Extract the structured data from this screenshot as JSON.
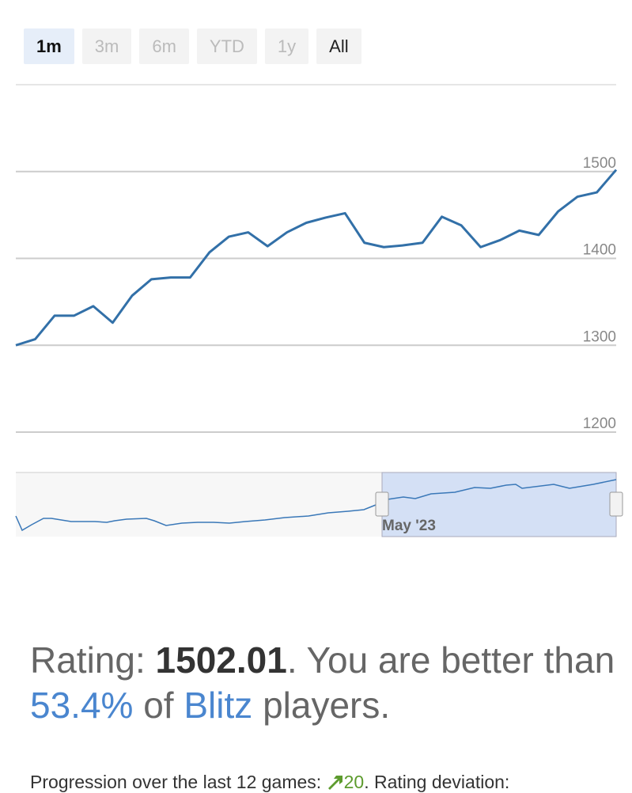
{
  "range_buttons": [
    "1m",
    "3m",
    "6m",
    "YTD",
    "1y",
    "All"
  ],
  "chart_data": {
    "type": "line",
    "color": "#3270a8",
    "grid": true,
    "values": [
      1300,
      1307,
      1334,
      1334,
      1345,
      1326,
      1357,
      1376,
      1378,
      1378,
      1407,
      1425,
      1430,
      1414,
      1430,
      1441,
      1447,
      1452,
      1418,
      1413,
      1415,
      1418,
      1448,
      1438,
      1413,
      1421,
      1432,
      1427,
      1454,
      1471,
      1476,
      1502
    ],
    "ylim": [
      1200,
      1600
    ],
    "yticks": [
      1200,
      1300,
      1400,
      1500
    ]
  },
  "navigator": {
    "label": "May '23"
  },
  "summary": {
    "rating_label": "Rating:",
    "rating": "1502.01",
    "text1": ". You are better than",
    "percentile": "53.4%",
    "text2": "of",
    "variant": "Blitz",
    "text3": "players."
  },
  "progression": {
    "text": "Progression over the last 12 games:",
    "change": "20",
    "text2": ". Rating deviation:"
  }
}
